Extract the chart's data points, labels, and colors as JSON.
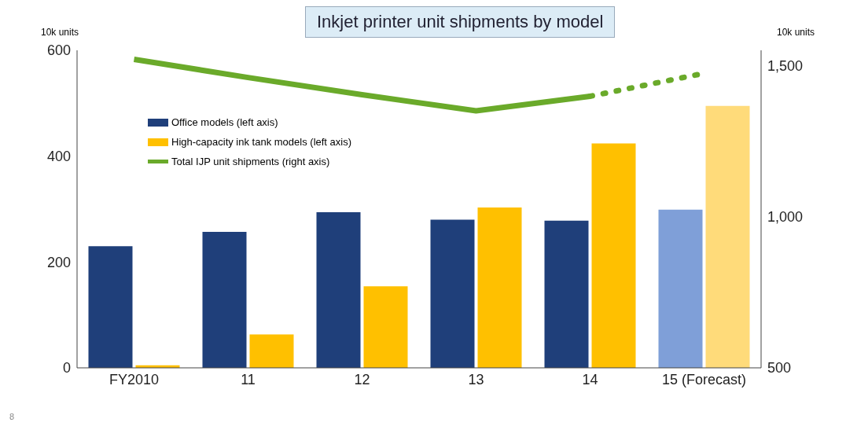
{
  "chart_data": {
    "type": "bar",
    "title": "Inkjet printer unit shipments by model",
    "ylabel": "10k units",
    "y2label": "10k units",
    "categories": [
      "FY2010",
      "11",
      "12",
      "13",
      "14",
      "15 (Forecast)"
    ],
    "series": [
      {
        "name": "Office models (left axis)",
        "color": "#1f3f7a",
        "colors": [
          "#1f3f7a",
          "#1f3f7a",
          "#1f3f7a",
          "#1f3f7a",
          "#1f3f7a",
          "#7f9fd8"
        ],
        "values": [
          230,
          257,
          294,
          280,
          278,
          299
        ]
      },
      {
        "name": "High-capacity ink tank models (left axis)",
        "color": "#ffc000",
        "colors": [
          "#ffc000",
          "#ffc000",
          "#ffc000",
          "#ffc000",
          "#ffc000",
          "#ffdb7a"
        ],
        "values": [
          5,
          63,
          154,
          303,
          424,
          495
        ]
      },
      {
        "name": "Total IJP unit shipments (right axis)",
        "type": "line",
        "axis": "y2",
        "color": "#6aaa2a",
        "line_style": "solid",
        "values": [
          1520,
          1460,
          1403,
          1350,
          1398,
          null
        ]
      },
      {
        "type": "line",
        "axis": "y2",
        "color": "#6aaa2a",
        "line_style": "dotted",
        "values": [
          null,
          null,
          null,
          null,
          1398,
          1474
        ]
      }
    ],
    "ylim": [
      0,
      600
    ],
    "yticks": [
      0,
      200,
      400,
      600
    ],
    "y2lim": [
      500,
      1550
    ],
    "y2ticks": [
      500,
      {
        "value": 1000,
        "label": "1,000"
      },
      {
        "value": 1500,
        "label": "1,500"
      }
    ],
    "grid": false,
    "legend": "top left",
    "marker": "none",
    "annotations": [
      "8"
    ]
  }
}
